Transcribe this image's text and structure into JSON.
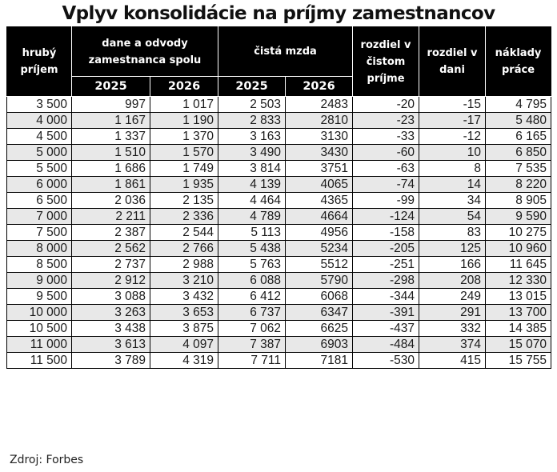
{
  "title": "Vplyv konsolidácie na príjmy zamestnancov",
  "header": {
    "gross_income": "hrubý príjem",
    "taxes_group": "dane a odvody zamestnanca spolu",
    "net_wage_group": "čistá mzda",
    "net_income_diff": "rozdiel v čistom príjme",
    "tax_diff": "rozdiel v dani",
    "labor_cost": "náklady práce",
    "years": [
      "2025",
      "2026",
      "2025",
      "2026"
    ]
  },
  "rows": [
    [
      "3 500",
      "997",
      "1 017",
      "2 503",
      "2483",
      "-20",
      "-15",
      "4 795"
    ],
    [
      "4 000",
      "1 167",
      "1 190",
      "2 833",
      "2810",
      "-23",
      "-17",
      "5 480"
    ],
    [
      "4 500",
      "1 337",
      "1 370",
      "3 163",
      "3130",
      "-33",
      "-12",
      "6 165"
    ],
    [
      "5 000",
      "1 510",
      "1 570",
      "3 490",
      "3430",
      "-60",
      "10",
      "6 850"
    ],
    [
      "5 500",
      "1 686",
      "1 749",
      "3 814",
      "3751",
      "-63",
      "8",
      "7 535"
    ],
    [
      "6 000",
      "1 861",
      "1 935",
      "4 139",
      "4065",
      "-74",
      "14",
      "8 220"
    ],
    [
      "6 500",
      "2 036",
      "2 135",
      "4 464",
      "4365",
      "-99",
      "34",
      "8 905"
    ],
    [
      "7 000",
      "2 211",
      "2 336",
      "4 789",
      "4664",
      "-124",
      "54",
      "9 590"
    ],
    [
      "7 500",
      "2 387",
      "2 544",
      "5 113",
      "4956",
      "-158",
      "83",
      "10 275"
    ],
    [
      "8 000",
      "2 562",
      "2 766",
      "5 438",
      "5234",
      "-205",
      "125",
      "10 960"
    ],
    [
      "8 500",
      "2 737",
      "2 988",
      "5 763",
      "5512",
      "-251",
      "166",
      "11 645"
    ],
    [
      "9 000",
      "2 912",
      "3 210",
      "6 088",
      "5790",
      "-298",
      "208",
      "12 330"
    ],
    [
      "9 500",
      "3 088",
      "3 432",
      "6 412",
      "6068",
      "-344",
      "249",
      "13 015"
    ],
    [
      "10 000",
      "3 263",
      "3 653",
      "6 737",
      "6347",
      "-391",
      "291",
      "13 700"
    ],
    [
      "10 500",
      "3 438",
      "3 875",
      "7 062",
      "6625",
      "-437",
      "332",
      "14 385"
    ],
    [
      "11 000",
      "3 613",
      "4 097",
      "7 387",
      "6903",
      "-484",
      "374",
      "15 070"
    ],
    [
      "11 500",
      "3 789",
      "4 319",
      "7 711",
      "7181",
      "-530",
      "415",
      "15 755"
    ]
  ],
  "source": "Zdroj: Forbes",
  "colors": {
    "header_bg": "#000000",
    "header_text": "#ffffff",
    "row_alt_bg": "#e8e8e8",
    "row_bg": "#ffffff"
  }
}
